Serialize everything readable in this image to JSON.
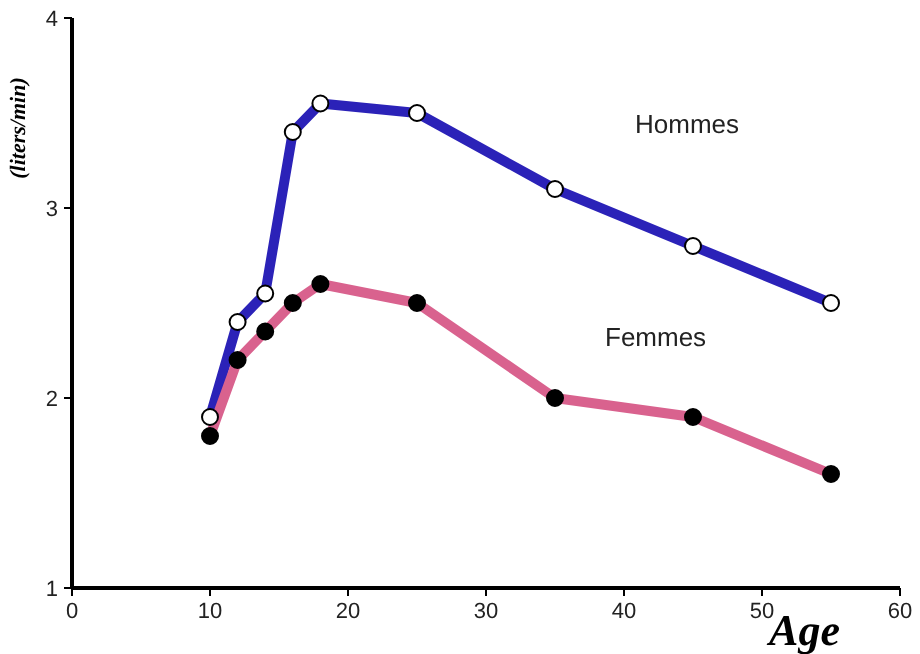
{
  "chart_data": {
    "type": "line",
    "xlabel": "Age",
    "ylabel": "(liters/min)",
    "x": [
      10,
      12,
      14,
      16,
      18,
      25,
      35,
      45,
      55
    ],
    "series": [
      {
        "name": "Hommes",
        "color": "#2b22b8",
        "values": [
          1.9,
          2.4,
          2.55,
          3.4,
          3.55,
          3.5,
          3.1,
          2.8,
          2.5
        ]
      },
      {
        "name": "Femmes",
        "color": "#d9628e",
        "values": [
          1.8,
          2.2,
          2.35,
          2.5,
          2.6,
          2.5,
          2.0,
          1.9,
          1.6
        ]
      }
    ],
    "xlim": [
      0,
      60
    ],
    "xticks": [
      0,
      10,
      20,
      30,
      40,
      50,
      60
    ],
    "ylim": [
      1,
      4
    ],
    "yticks": [
      1,
      2,
      3,
      4
    ],
    "grid": false,
    "legend": false,
    "marker": "circle",
    "line_style": "solid"
  }
}
